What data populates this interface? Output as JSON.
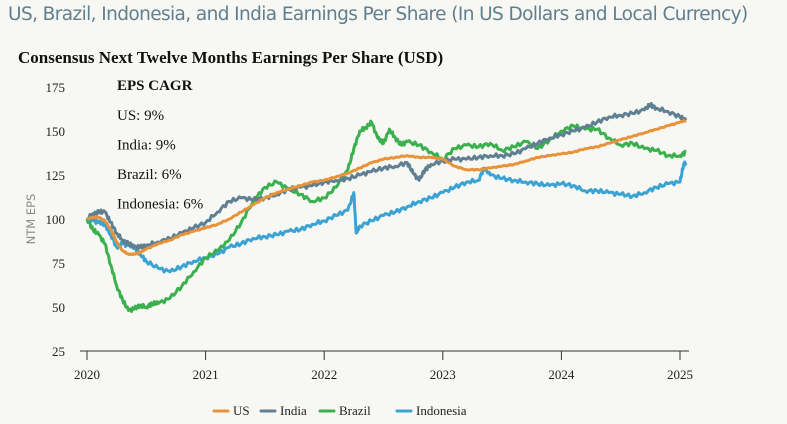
{
  "page": {
    "title": "US, Brazil, Indonesia, and India Earnings Per Share (In US Dollars and Local Currency)",
    "subtitle": "Consensus Next Twelve Months Earnings Per Share (USD)"
  },
  "chart_data": {
    "type": "line",
    "title": "Consensus Next Twelve Months Earnings Per Share (USD)",
    "xlabel": "",
    "ylabel": "NTM EPS",
    "xlim": [
      2020,
      2025.1
    ],
    "ylim": [
      25,
      175
    ],
    "x_ticks": [
      "2020",
      "2021",
      "2022",
      "2023",
      "2024",
      "2025"
    ],
    "x_tick_values": [
      2020,
      2021,
      2022,
      2023,
      2024,
      2025
    ],
    "y_ticks": [
      25,
      50,
      75,
      100,
      125,
      150,
      175
    ],
    "grid": false,
    "legend_position": "bottom",
    "annotation": {
      "title": "EPS CAGR",
      "lines": [
        "US: 9%",
        "India: 9%",
        "Brazil: 6%",
        "Indonesia: 6%"
      ]
    },
    "series": [
      {
        "name": "US",
        "color": "#e8923a",
        "x": [
          2020.0,
          2020.05,
          2020.1,
          2020.15,
          2020.2,
          2020.25,
          2020.3,
          2020.35,
          2020.4,
          2020.45,
          2020.5,
          2020.6,
          2020.7,
          2020.8,
          2020.9,
          2021.0,
          2021.1,
          2021.2,
          2021.3,
          2021.4,
          2021.5,
          2021.6,
          2021.7,
          2021.8,
          2021.9,
          2022.0,
          2022.1,
          2022.2,
          2022.3,
          2022.4,
          2022.5,
          2022.6,
          2022.7,
          2022.8,
          2022.9,
          2023.0,
          2023.1,
          2023.2,
          2023.3,
          2023.4,
          2023.5,
          2023.6,
          2023.7,
          2023.8,
          2023.9,
          2024.0,
          2024.1,
          2024.2,
          2024.3,
          2024.4,
          2024.5,
          2024.6,
          2024.7,
          2024.8,
          2024.9,
          2025.0,
          2025.05
        ],
        "values": [
          100,
          101,
          101,
          99,
          94,
          87,
          82,
          80,
          80,
          81,
          83,
          86,
          88,
          91,
          93,
          95,
          97,
          100,
          104,
          108,
          112,
          115,
          117,
          119,
          121,
          122,
          124,
          126,
          129,
          132,
          134,
          135,
          136,
          135,
          135,
          134,
          130,
          128,
          128,
          129,
          130,
          131,
          133,
          135,
          136,
          137,
          138,
          140,
          141,
          143,
          145,
          147,
          149,
          151,
          153,
          155,
          156
        ]
      },
      {
        "name": "India",
        "color": "#5f7f93",
        "x": [
          2020.0,
          2020.05,
          2020.1,
          2020.15,
          2020.2,
          2020.25,
          2020.3,
          2020.35,
          2020.4,
          2020.45,
          2020.5,
          2020.6,
          2020.7,
          2020.8,
          2020.9,
          2021.0,
          2021.1,
          2021.2,
          2021.3,
          2021.4,
          2021.5,
          2021.6,
          2021.7,
          2021.8,
          2021.9,
          2022.0,
          2022.1,
          2022.2,
          2022.3,
          2022.4,
          2022.5,
          2022.6,
          2022.7,
          2022.75,
          2022.8,
          2022.85,
          2022.9,
          2023.0,
          2023.1,
          2023.2,
          2023.3,
          2023.4,
          2023.5,
          2023.6,
          2023.7,
          2023.8,
          2023.9,
          2024.0,
          2024.1,
          2024.2,
          2024.3,
          2024.4,
          2024.5,
          2024.6,
          2024.7,
          2024.75,
          2024.8,
          2024.9,
          2025.0,
          2025.05
        ],
        "values": [
          100,
          103,
          104,
          104,
          98,
          92,
          88,
          86,
          84,
          84,
          85,
          87,
          89,
          92,
          95,
          98,
          104,
          110,
          112,
          111,
          112,
          114,
          117,
          118,
          119,
          121,
          122,
          123,
          125,
          127,
          129,
          130,
          132,
          126,
          122,
          128,
          131,
          133,
          134,
          134,
          135,
          136,
          136,
          137,
          140,
          143,
          146,
          148,
          150,
          152,
          155,
          158,
          159,
          160,
          162,
          165,
          163,
          161,
          158,
          156
        ]
      },
      {
        "name": "Brazil",
        "color": "#3bb04e",
        "x": [
          2020.0,
          2020.05,
          2020.1,
          2020.15,
          2020.2,
          2020.25,
          2020.3,
          2020.35,
          2020.4,
          2020.45,
          2020.5,
          2020.55,
          2020.6,
          2020.7,
          2020.8,
          2020.9,
          2021.0,
          2021.1,
          2021.2,
          2021.3,
          2021.4,
          2021.5,
          2021.6,
          2021.7,
          2021.8,
          2021.9,
          2022.0,
          2022.1,
          2022.2,
          2022.25,
          2022.3,
          2022.35,
          2022.4,
          2022.45,
          2022.5,
          2022.55,
          2022.6,
          2022.65,
          2022.7,
          2022.8,
          2022.9,
          2023.0,
          2023.1,
          2023.2,
          2023.3,
          2023.4,
          2023.5,
          2023.6,
          2023.7,
          2023.8,
          2023.9,
          2024.0,
          2024.1,
          2024.2,
          2024.3,
          2024.4,
          2024.5,
          2024.6,
          2024.7,
          2024.8,
          2024.9,
          2025.0,
          2025.05
        ],
        "values": [
          100,
          94,
          91,
          86,
          74,
          62,
          54,
          48,
          49,
          51,
          50,
          52,
          52,
          55,
          62,
          70,
          78,
          82,
          88,
          98,
          110,
          118,
          121,
          117,
          114,
          110,
          112,
          118,
          128,
          140,
          150,
          152,
          155,
          146,
          143,
          151,
          146,
          142,
          144,
          142,
          138,
          134,
          140,
          142,
          141,
          143,
          139,
          141,
          144,
          140,
          145,
          150,
          153,
          151,
          151,
          146,
          142,
          143,
          140,
          139,
          136,
          136,
          138
        ]
      },
      {
        "name": "Indonesia",
        "color": "#3aa3d4",
        "x": [
          2020.0,
          2020.05,
          2020.1,
          2020.15,
          2020.2,
          2020.25,
          2020.3,
          2020.35,
          2020.4,
          2020.45,
          2020.5,
          2020.6,
          2020.7,
          2020.8,
          2020.9,
          2021.0,
          2021.1,
          2021.2,
          2021.3,
          2021.4,
          2021.5,
          2021.6,
          2021.7,
          2021.8,
          2021.9,
          2022.0,
          2022.1,
          2022.2,
          2022.25,
          2022.27,
          2022.3,
          2022.4,
          2022.5,
          2022.6,
          2022.7,
          2022.8,
          2022.9,
          2023.0,
          2023.1,
          2023.2,
          2023.3,
          2023.35,
          2023.4,
          2023.5,
          2023.6,
          2023.7,
          2023.8,
          2023.9,
          2024.0,
          2024.1,
          2024.2,
          2024.3,
          2024.4,
          2024.5,
          2024.6,
          2024.7,
          2024.8,
          2024.9,
          2025.0,
          2025.03,
          2025.05
        ],
        "values": [
          100,
          99,
          98,
          97,
          91,
          84,
          86,
          85,
          84,
          80,
          76,
          72,
          70,
          73,
          76,
          78,
          80,
          84,
          86,
          89,
          90,
          91,
          93,
          94,
          97,
          99,
          102,
          105,
          115,
          92,
          96,
          99,
          102,
          104,
          107,
          110,
          112,
          115,
          118,
          121,
          122,
          129,
          125,
          123,
          122,
          121,
          120,
          119,
          120,
          119,
          116,
          116,
          115,
          114,
          113,
          115,
          118,
          120,
          121,
          131,
          132
        ]
      }
    ]
  }
}
